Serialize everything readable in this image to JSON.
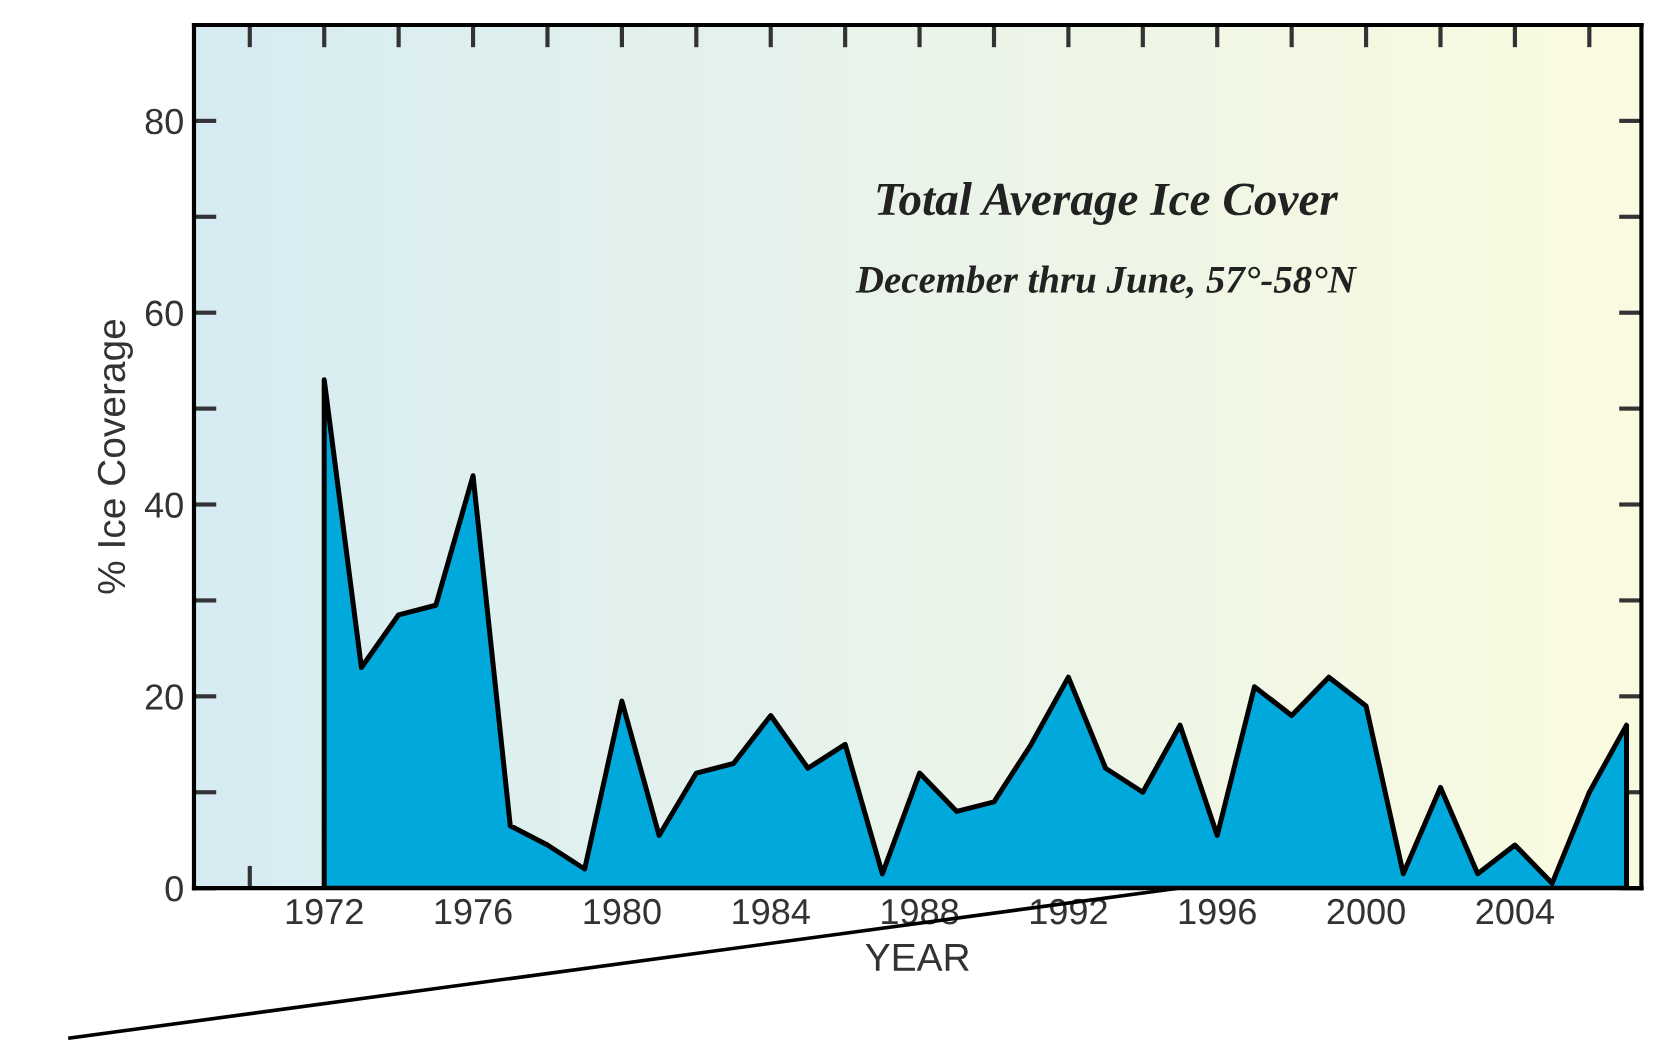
{
  "chart_data": {
    "type": "area",
    "title": "Total Average Ice Cover",
    "subtitle": "December thru June, 57°-58°N",
    "xlabel": "YEAR",
    "ylabel": "% Ice Coverage",
    "x": [
      1972,
      1973,
      1974,
      1975,
      1976,
      1977,
      1978,
      1979,
      1980,
      1981,
      1982,
      1983,
      1984,
      1985,
      1986,
      1987,
      1988,
      1989,
      1990,
      1991,
      1992,
      1993,
      1994,
      1995,
      1996,
      1997,
      1998,
      1999,
      2000,
      2001,
      2002,
      2003,
      2004,
      2005,
      2006,
      2007
    ],
    "series": [
      {
        "color": "#00a8dc",
        "values": [
          53,
          23,
          28.5,
          29.5,
          43,
          6.5,
          4.5,
          2,
          19.5,
          5.5,
          12,
          13,
          18,
          12.5,
          15,
          1.5,
          12,
          8,
          9,
          15,
          22,
          12.5,
          10,
          17,
          5.5,
          21,
          18,
          22,
          19,
          1.5,
          10.5,
          1.5,
          4.5,
          0.5,
          10,
          17
        ]
      }
    ],
    "xlim": [
      1968.5,
      2007.4
    ],
    "ylim": [
      0,
      90
    ],
    "xticks": [
      {
        "value": 1970,
        "label": null
      },
      1972,
      {
        "value": 1974,
        "label": null
      },
      1976,
      {
        "value": 1978,
        "label": null
      },
      1980,
      {
        "value": 1982,
        "label": null
      },
      1984,
      {
        "value": 1986,
        "label": null
      },
      1988,
      {
        "value": 1990,
        "label": null
      },
      1992,
      {
        "value": 1994,
        "label": null
      },
      1996,
      {
        "value": 1998,
        "label": null
      },
      2000,
      {
        "value": 2002,
        "label": null
      },
      2004,
      {
        "value": 2006,
        "label": null
      }
    ],
    "yticks": [
      0,
      {
        "value": 10,
        "label": null
      },
      20,
      {
        "value": 30,
        "label": null
      },
      40,
      {
        "value": 50,
        "label": null
      },
      60,
      {
        "value": 70,
        "label": null
      },
      80
    ],
    "grid": false,
    "legend": false
  }
}
